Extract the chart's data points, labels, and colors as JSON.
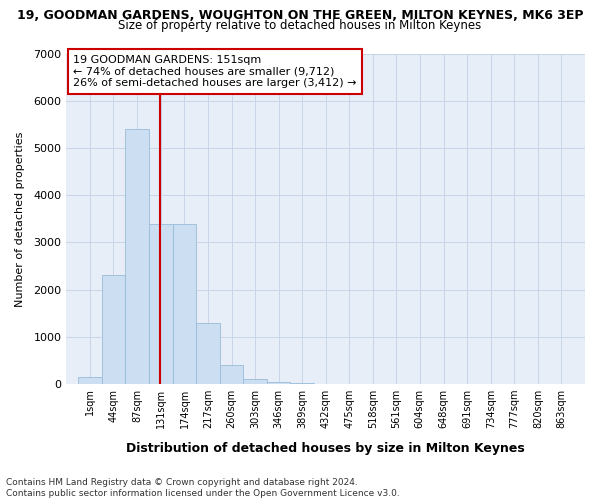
{
  "title": "19, GOODMAN GARDENS, WOUGHTON ON THE GREEN, MILTON KEYNES, MK6 3EP",
  "subtitle": "Size of property relative to detached houses in Milton Keynes",
  "xlabel": "Distribution of detached houses by size in Milton Keynes",
  "ylabel": "Number of detached properties",
  "footer_line1": "Contains HM Land Registry data © Crown copyright and database right 2024.",
  "footer_line2": "Contains public sector information licensed under the Open Government Licence v3.0.",
  "annotation_line1": "19 GOODMAN GARDENS: 151sqm",
  "annotation_line2": "← 74% of detached houses are smaller (9,712)",
  "annotation_line3": "26% of semi-detached houses are larger (3,412) →",
  "property_line_x": 151,
  "bar_color": "#ccdff2",
  "bar_edge_color": "#9abcd8",
  "property_line_color": "#cc0000",
  "annotation_box_edgecolor": "#cc0000",
  "background_color": "#ffffff",
  "plot_bg_color": "#e8eef8",
  "grid_color": "#c8d4e8",
  "categories": [
    "1sqm",
    "44sqm",
    "87sqm",
    "131sqm",
    "174sqm",
    "217sqm",
    "260sqm",
    "303sqm",
    "346sqm",
    "389sqm",
    "432sqm",
    "475sqm",
    "518sqm",
    "561sqm",
    "604sqm",
    "648sqm",
    "691sqm",
    "734sqm",
    "777sqm",
    "820sqm",
    "863sqm"
  ],
  "bin_starts": [
    1,
    44,
    87,
    131,
    174,
    217,
    260,
    303,
    346,
    389,
    432,
    475,
    518,
    561,
    604,
    648,
    691,
    734,
    777,
    820,
    863
  ],
  "bin_width": 43,
  "values": [
    150,
    2300,
    5400,
    3400,
    3400,
    1300,
    400,
    100,
    40,
    15,
    5,
    2,
    1,
    0,
    0,
    0,
    0,
    0,
    0,
    0,
    0
  ],
  "ylim": [
    0,
    7000
  ],
  "yticks": [
    0,
    1000,
    2000,
    3000,
    4000,
    5000,
    6000,
    7000
  ]
}
